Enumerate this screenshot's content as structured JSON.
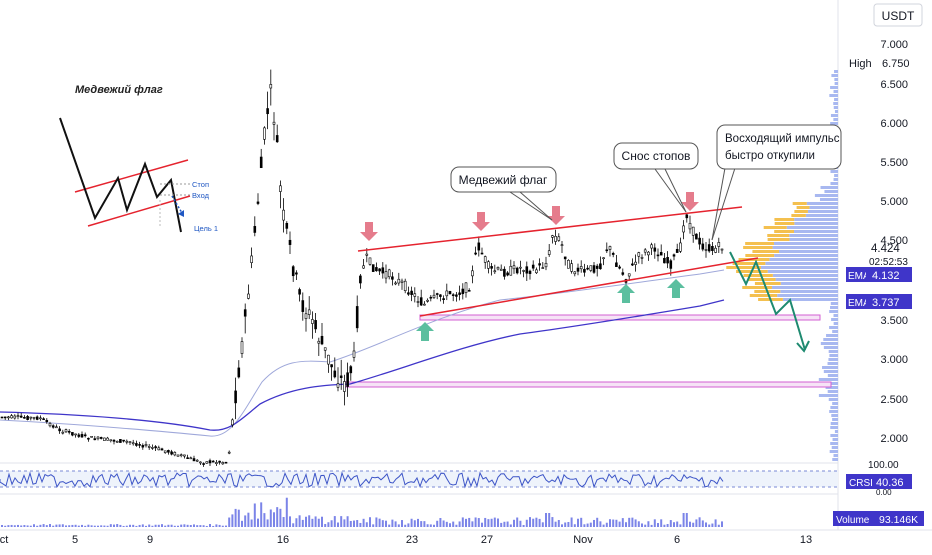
{
  "currency": "USDT",
  "price_axis": {
    "ticks": [
      "7.000",
      "6.500",
      "6.000",
      "5.500",
      "5.000",
      "4.500",
      "3.500",
      "3.000",
      "2.500",
      "2.000"
    ],
    "ylim": [
      1.95,
      7.15
    ]
  },
  "time_axis": {
    "ticks": [
      "ct",
      "5",
      "9",
      "16",
      "23",
      "27",
      "Nov",
      "6",
      "13"
    ]
  },
  "badges": {
    "high_label": "High",
    "high_value": "6.750",
    "last_price": "4.424",
    "countdown": "02:52:53",
    "ema_label": "EMA",
    "ema1_value": "4.132",
    "ema2_value": "3.737",
    "crsi_label": "CRSI",
    "crsi_value": "40.36",
    "crsi_top": "100.00",
    "crsi_bottom": "0.00",
    "volume_label": "Volume",
    "volume_value": "93.146K"
  },
  "annotations": {
    "inset_title": "Медвежий флаг",
    "inset_stop": "Стоп",
    "inset_entry": "Вход",
    "inset_target": "Цель 1",
    "callout_flag": "Медвежий флаг",
    "callout_stops": "Снос стопов",
    "callout_impulse_line1": "Восходящий импульс",
    "callout_impulse_line2": "быстро откупили"
  },
  "colors": {
    "up": "#26a69a",
    "down": "#ef5350",
    "candle": "#000000",
    "ema_fast": "#9fa8da",
    "ema_slow": "#3f35c9",
    "flag_line": "#e5232e",
    "support_zone": "#d35fd3",
    "projection": "#1e8a70",
    "crsi": "#3d55c7",
    "volume": "#7b84e8",
    "ema_badge": "#3f35c9"
  },
  "chart_data": {
    "type": "candlestick",
    "pair": "USDT",
    "period": "Oct – Nov",
    "high": 6.75,
    "last": 4.424,
    "series": [
      {
        "name": "EMA",
        "last": 4.132
      },
      {
        "name": "EMA",
        "last": 3.737
      },
      {
        "name": "CRSI",
        "last": 40.36
      },
      {
        "name": "Volume",
        "last": "93.146K"
      }
    ]
  }
}
